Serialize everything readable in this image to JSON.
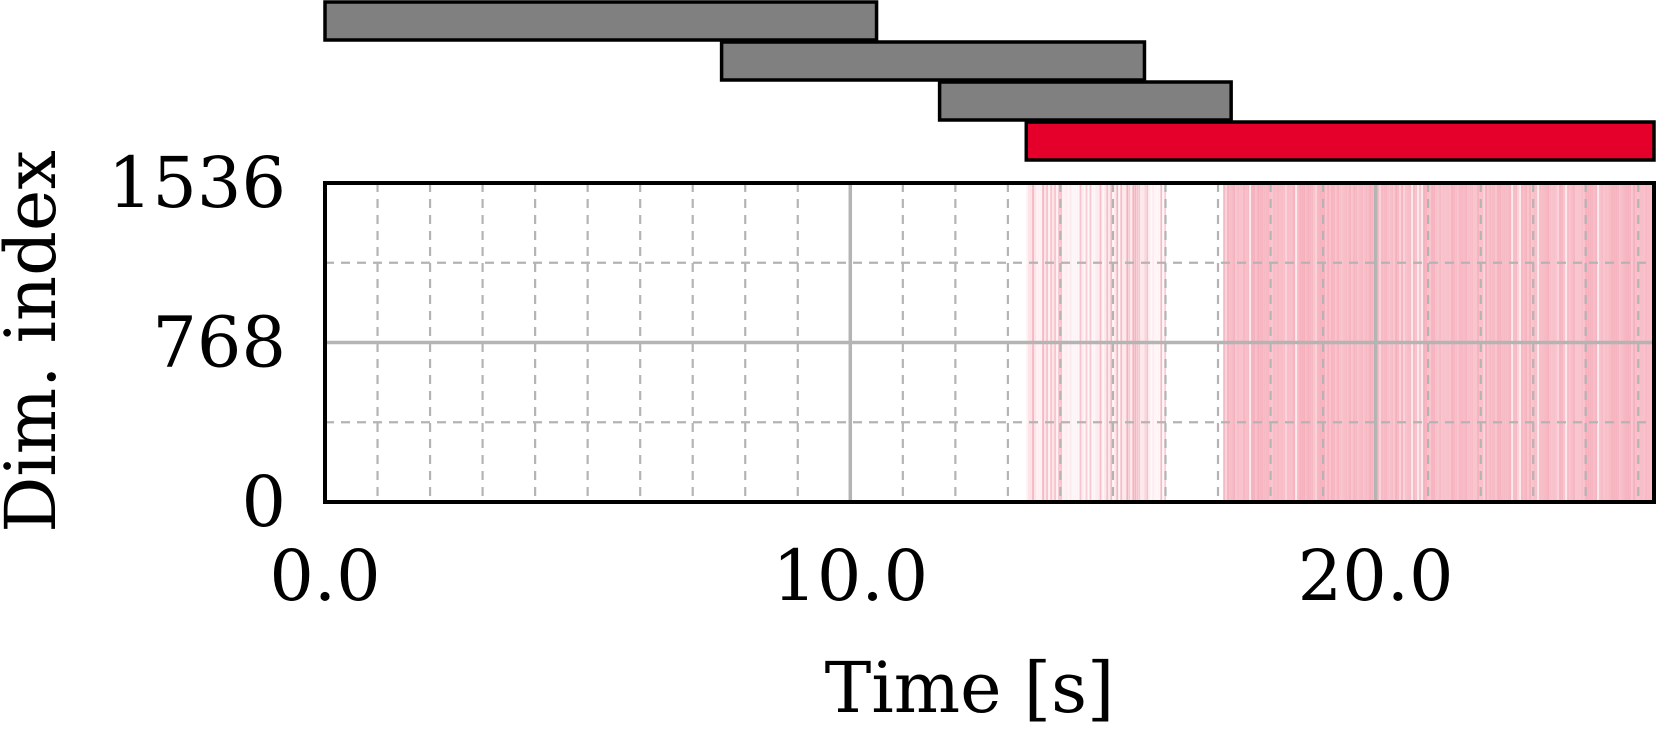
{
  "chart_data": {
    "type": "heatmap",
    "xlabel": "Time [s]",
    "ylabel": "Dim. index",
    "xlim": [
      0.0,
      25.3
    ],
    "ylim": [
      0,
      1536
    ],
    "x_ticks": [
      0.0,
      10.0,
      20.0
    ],
    "x_tick_labels": [
      "0.0",
      "10.0",
      "20.0"
    ],
    "y_ticks": [
      0,
      768,
      1536
    ],
    "y_tick_labels": [
      "0",
      "768",
      "1536"
    ],
    "x_minor_step": 1.0,
    "y_minor_step": 384,
    "grid": true,
    "segments": [
      {
        "start": 0.0,
        "end": 10.5,
        "color": "#808080"
      },
      {
        "start": 7.55,
        "end": 15.6,
        "color": "#808080"
      },
      {
        "start": 11.7,
        "end": 17.25,
        "color": "#808080"
      },
      {
        "start": 13.35,
        "end": 25.3,
        "color": "#e4002b"
      }
    ],
    "activity": [
      {
        "start": 13.35,
        "end": 14.1,
        "density": 0.55
      },
      {
        "start": 14.1,
        "end": 14.8,
        "density": 0.4
      },
      {
        "start": 14.8,
        "end": 15.6,
        "density": 0.45
      },
      {
        "start": 15.6,
        "end": 16.0,
        "density": 0.35
      },
      {
        "start": 17.1,
        "end": 25.3,
        "density": 0.9
      }
    ],
    "activity_color": "#f4a6b4"
  }
}
